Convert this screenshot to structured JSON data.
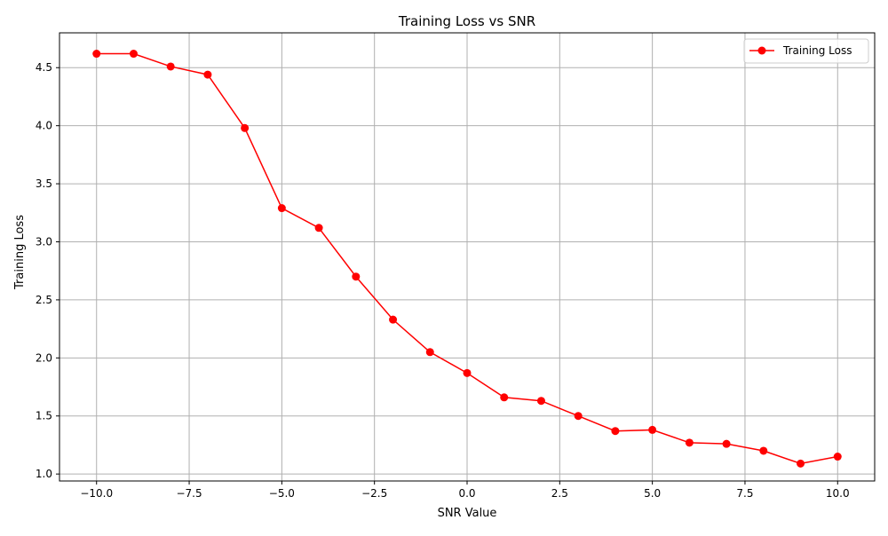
{
  "chart_data": {
    "type": "line",
    "title": "Training Loss vs SNR",
    "xlabel": "SNR Value",
    "ylabel": "Training Loss",
    "xlim": [
      -11,
      11
    ],
    "ylim": [
      0.94,
      4.8
    ],
    "xticks": [
      -10.0,
      -7.5,
      -5.0,
      -2.5,
      0.0,
      2.5,
      5.0,
      7.5,
      10.0
    ],
    "xtick_labels": [
      "−10.0",
      "−7.5",
      "−5.0",
      "−2.5",
      "0.0",
      "2.5",
      "5.0",
      "7.5",
      "10.0"
    ],
    "yticks": [
      1.0,
      1.5,
      2.0,
      2.5,
      3.0,
      3.5,
      4.0,
      4.5
    ],
    "ytick_labels": [
      "1.0",
      "1.5",
      "2.0",
      "2.5",
      "3.0",
      "3.5",
      "4.0",
      "4.5"
    ],
    "grid": true,
    "legend_position": "top-right",
    "series": [
      {
        "name": "Training Loss",
        "color": "#ff0000",
        "marker": "circle",
        "x": [
          -10,
          -9,
          -8,
          -7,
          -6,
          -5,
          -4,
          -3,
          -2,
          -1,
          0,
          1,
          2,
          3,
          4,
          5,
          6,
          7,
          8,
          9,
          10
        ],
        "y": [
          4.62,
          4.62,
          4.51,
          4.44,
          3.98,
          3.29,
          3.12,
          2.7,
          2.33,
          2.05,
          1.87,
          1.66,
          1.63,
          1.5,
          1.37,
          1.38,
          1.27,
          1.26,
          1.2,
          1.09,
          1.15
        ]
      }
    ]
  }
}
